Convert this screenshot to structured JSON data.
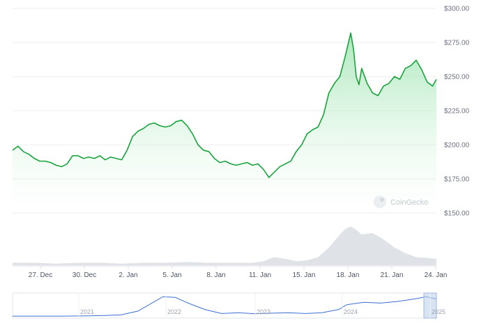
{
  "chart_data": {
    "type": "area",
    "currency": "$",
    "y_ticks": [
      "$300.00",
      "$275.00",
      "$250.00",
      "$225.00",
      "$200.00",
      "$175.00",
      "$150.00"
    ],
    "ylim": [
      150,
      300
    ],
    "x_ticks": [
      "27. Dec",
      "30. Dec",
      "2. Jan",
      "5. Jan",
      "8. Jan",
      "11. Jan",
      "15. Jan",
      "18. Jan",
      "21. Jan",
      "24. Jan"
    ],
    "series": [
      {
        "x": [
          24,
          24.5,
          25,
          25.5,
          26,
          26.5,
          27,
          27.5,
          28,
          28.5,
          29,
          29.5,
          30,
          30.5,
          31,
          31.5,
          32,
          32.5,
          33,
          33.5,
          34,
          34.5,
          35,
          35.5,
          36,
          36.5,
          37,
          37.5,
          38,
          38.5,
          39,
          39.5,
          40,
          40.5,
          41,
          41.5,
          42,
          42.5,
          43,
          43.5,
          44,
          44.5,
          45,
          45.5,
          46,
          46.5,
          47,
          47.5,
          48,
          48.5,
          49,
          49.5,
          50,
          50.5,
          51,
          51.5,
          52,
          52.5,
          53,
          53.5,
          54,
          54.5,
          55,
          55.25,
          55.5,
          55.75,
          56,
          56.5,
          57,
          57.5,
          58,
          58.5,
          59,
          59.5,
          60,
          60.5,
          61,
          61.5,
          62,
          62.5,
          62.85
        ],
        "values": [
          196,
          199,
          195,
          193,
          190,
          188,
          188,
          187,
          185,
          184,
          186,
          192,
          192,
          190,
          191,
          190,
          192,
          189,
          191,
          190,
          189,
          196,
          206,
          210,
          212,
          215,
          216,
          214,
          213,
          214,
          217,
          218,
          214,
          208,
          200,
          196,
          195,
          190,
          187,
          188,
          186,
          185,
          186,
          187,
          185,
          186,
          182,
          176,
          180,
          184,
          186,
          188,
          195,
          200,
          208,
          211,
          213,
          222,
          238,
          245,
          250,
          265,
          282,
          270,
          250,
          244,
          256,
          245,
          238,
          236,
          243,
          245,
          250,
          248,
          256,
          258,
          262,
          255,
          246,
          243,
          248
        ]
      }
    ],
    "volume": {
      "x": [
        24,
        26,
        28,
        30,
        32,
        34,
        36,
        38,
        40,
        42,
        44,
        46,
        47,
        48,
        49,
        50,
        51,
        52,
        53,
        54,
        54.5,
        55,
        55.5,
        56,
        57,
        58,
        59,
        60,
        61,
        62,
        62.85
      ],
      "values": [
        3,
        3,
        2,
        3,
        3,
        2,
        3,
        3,
        4,
        3,
        3,
        3,
        5,
        10,
        8,
        5,
        6,
        10,
        22,
        38,
        45,
        48,
        44,
        38,
        40,
        32,
        22,
        15,
        10,
        9,
        8
      ]
    },
    "navigator": {
      "x_ticks": [
        "2021",
        "2022",
        "2023",
        "2024",
        "2025"
      ],
      "x": [
        2020.0,
        2020.3,
        2020.6,
        2020.9,
        2021.1,
        2021.3,
        2021.5,
        2021.7,
        2021.8,
        2021.95,
        2022.1,
        2022.3,
        2022.5,
        2022.7,
        2022.9,
        2023.1,
        2023.3,
        2023.5,
        2023.7,
        2023.9,
        2024.0,
        2024.2,
        2024.4,
        2024.6,
        2024.8,
        2024.95,
        2025.07
      ],
      "values": [
        4,
        4,
        4,
        5,
        8,
        12,
        35,
        95,
        125,
        120,
        85,
        45,
        20,
        25,
        18,
        22,
        25,
        20,
        25,
        45,
        75,
        90,
        85,
        95,
        110,
        125,
        110
      ]
    },
    "watermark": "CoinGecko",
    "grid": true,
    "colors": {
      "line": "#18a33c",
      "fill_top": "#8fe0a4",
      "fill_bottom": "#ffffff",
      "volume": "#dfe3e8",
      "navigator_line": "#3b6fd4",
      "navigator_window": "#b9cdea",
      "grid": "#ececec"
    }
  }
}
